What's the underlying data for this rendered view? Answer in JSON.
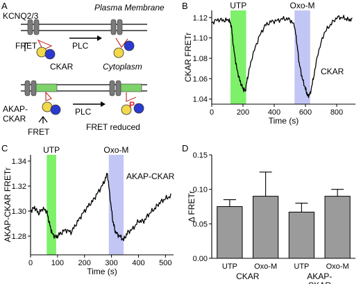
{
  "panels": {
    "A": {
      "letter": "A",
      "labels": {
        "kcnq": "KCNQ2/3",
        "plasma_membrane": "Plasma Membrane",
        "cytoplasm": "Cytoplasm",
        "fret_top": "FRET",
        "plc_top": "PLC",
        "ckar": "CKAR",
        "akap_ckar": "AKAP-\nCKAR",
        "fret_bottom": "FRET",
        "plc_bottom": "PLC",
        "fret_reduced": "FRET reduced",
        "phospho": "P"
      },
      "colors": {
        "channel": "#7a7a7a",
        "yellow_fp": "#f2d84a",
        "blue_fp": "#2b3ad1",
        "akap_bar": "#7ed36a",
        "phospho": "#e02020",
        "linker": "#c0392b"
      }
    },
    "B": {
      "letter": "B"
    },
    "C": {
      "letter": "C"
    },
    "D": {
      "letter": "D"
    }
  },
  "chart_data": [
    {
      "panel": "B",
      "type": "line",
      "ylabel": "CKAR FRETr",
      "xlabel": "Time (s)",
      "xlim": [
        0,
        920
      ],
      "ylim": [
        1.035,
        1.127
      ],
      "xticks": [
        0,
        200,
        400,
        600,
        800
      ],
      "yticks": [
        1.04,
        1.06,
        1.08,
        1.1,
        1.12
      ],
      "ytick_labels": [
        "1.04",
        "1.06",
        "1.08",
        "1.10",
        "1.12"
      ],
      "series_label": "CKAR",
      "shaded": [
        {
          "label": "UTP",
          "start": 120,
          "end": 220,
          "color": "#7ef06a"
        },
        {
          "label": "Oxo-M",
          "start": 530,
          "end": 630,
          "color": "#c2c6f5"
        }
      ],
      "series": [
        {
          "x": [
            0,
            40,
            80,
            110,
            125,
            140,
            160,
            180,
            200,
            215,
            230,
            260,
            300,
            340,
            380,
            420,
            460,
            500,
            530,
            545,
            560,
            580,
            600,
            615,
            630,
            650,
            680,
            720,
            760,
            800,
            840,
            870,
            900
          ],
          "y": [
            1.115,
            1.118,
            1.117,
            1.118,
            1.112,
            1.09,
            1.07,
            1.058,
            1.05,
            1.048,
            1.062,
            1.082,
            1.1,
            1.112,
            1.116,
            1.117,
            1.119,
            1.118,
            1.112,
            1.095,
            1.075,
            1.06,
            1.05,
            1.043,
            1.045,
            1.06,
            1.085,
            1.105,
            1.113,
            1.12,
            1.12,
            1.118,
            1.118
          ]
        }
      ]
    },
    {
      "panel": "C",
      "type": "line",
      "ylabel": "AKAP-CKAR FRETr",
      "xlabel": "Time (s)",
      "xlim": [
        0,
        530
      ],
      "ylim": [
        1.265,
        1.345
      ],
      "xticks": [
        0,
        100,
        200,
        300,
        400,
        500
      ],
      "yticks": [
        1.28,
        1.3,
        1.32,
        1.34
      ],
      "ytick_labels": [
        "1.28",
        "1.30",
        "1.32",
        "1.34"
      ],
      "series_label": "AKAP-CKAR",
      "shaded": [
        {
          "label": "UTP",
          "start": 60,
          "end": 95,
          "color": "#7ef06a"
        },
        {
          "label": "Oxo-M",
          "start": 290,
          "end": 345,
          "color": "#c2c6f5"
        }
      ],
      "series": [
        {
          "x": [
            0,
            15,
            30,
            45,
            60,
            70,
            80,
            95,
            110,
            130,
            150,
            170,
            190,
            210,
            230,
            250,
            270,
            285,
            295,
            305,
            315,
            330,
            345,
            360,
            380,
            400,
            420,
            440,
            460,
            480,
            500,
            520
          ],
          "y": [
            1.3,
            1.303,
            1.298,
            1.302,
            1.3,
            1.29,
            1.282,
            1.279,
            1.282,
            1.285,
            1.283,
            1.29,
            1.297,
            1.303,
            1.308,
            1.315,
            1.322,
            1.33,
            1.31,
            1.292,
            1.283,
            1.28,
            1.277,
            1.283,
            1.286,
            1.292,
            1.292,
            1.298,
            1.302,
            1.307,
            1.31,
            1.312
          ]
        }
      ]
    },
    {
      "panel": "D",
      "type": "bar",
      "ylabel": "Δ FRETr",
      "ylim": [
        0,
        0.15
      ],
      "yticks": [
        0,
        0.05,
        0.1,
        0.15
      ],
      "ytick_labels": [
        "0.00",
        "0.05",
        "0.10",
        "0.15"
      ],
      "categories": [
        "UTP",
        "Oxo-M",
        "UTP",
        "Oxo-M"
      ],
      "values": [
        0.075,
        0.09,
        0.067,
        0.09
      ],
      "errors": [
        0.01,
        0.035,
        0.013,
        0.01
      ],
      "groups": [
        {
          "label": "CKAR",
          "members": [
            0,
            1
          ]
        },
        {
          "label": "AKAP-\nCKAR",
          "members": [
            2,
            3
          ]
        }
      ],
      "bar_color": "#9b9b9b"
    }
  ]
}
